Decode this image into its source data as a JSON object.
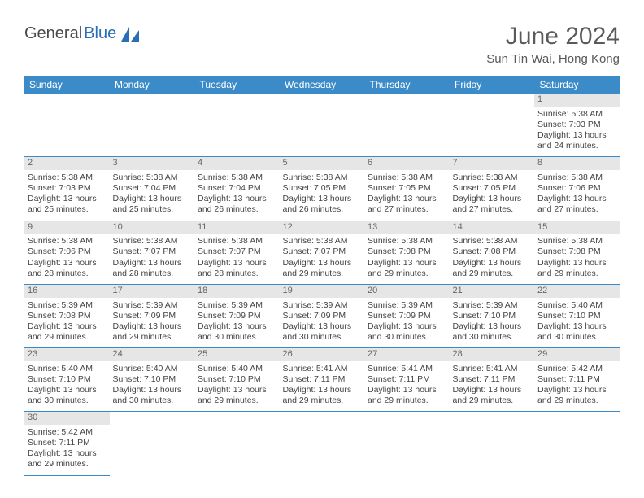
{
  "brand": {
    "part1": "General",
    "part2": "Blue"
  },
  "title": "June 2024",
  "location": "Sun Tin Wai, Hong Kong",
  "colors": {
    "header_bg": "#3b8bc9",
    "header_text": "#ffffff",
    "daynum_bg": "#e6e6e6",
    "text": "#444444",
    "border": "#3b8bc9"
  },
  "day_headers": [
    "Sunday",
    "Monday",
    "Tuesday",
    "Wednesday",
    "Thursday",
    "Friday",
    "Saturday"
  ],
  "weeks": [
    [
      null,
      null,
      null,
      null,
      null,
      null,
      {
        "n": "1",
        "sr": "Sunrise: 5:38 AM",
        "ss": "Sunset: 7:03 PM",
        "dl": "Daylight: 13 hours and 24 minutes."
      }
    ],
    [
      {
        "n": "2",
        "sr": "Sunrise: 5:38 AM",
        "ss": "Sunset: 7:03 PM",
        "dl": "Daylight: 13 hours and 25 minutes."
      },
      {
        "n": "3",
        "sr": "Sunrise: 5:38 AM",
        "ss": "Sunset: 7:04 PM",
        "dl": "Daylight: 13 hours and 25 minutes."
      },
      {
        "n": "4",
        "sr": "Sunrise: 5:38 AM",
        "ss": "Sunset: 7:04 PM",
        "dl": "Daylight: 13 hours and 26 minutes."
      },
      {
        "n": "5",
        "sr": "Sunrise: 5:38 AM",
        "ss": "Sunset: 7:05 PM",
        "dl": "Daylight: 13 hours and 26 minutes."
      },
      {
        "n": "6",
        "sr": "Sunrise: 5:38 AM",
        "ss": "Sunset: 7:05 PM",
        "dl": "Daylight: 13 hours and 27 minutes."
      },
      {
        "n": "7",
        "sr": "Sunrise: 5:38 AM",
        "ss": "Sunset: 7:05 PM",
        "dl": "Daylight: 13 hours and 27 minutes."
      },
      {
        "n": "8",
        "sr": "Sunrise: 5:38 AM",
        "ss": "Sunset: 7:06 PM",
        "dl": "Daylight: 13 hours and 27 minutes."
      }
    ],
    [
      {
        "n": "9",
        "sr": "Sunrise: 5:38 AM",
        "ss": "Sunset: 7:06 PM",
        "dl": "Daylight: 13 hours and 28 minutes."
      },
      {
        "n": "10",
        "sr": "Sunrise: 5:38 AM",
        "ss": "Sunset: 7:07 PM",
        "dl": "Daylight: 13 hours and 28 minutes."
      },
      {
        "n": "11",
        "sr": "Sunrise: 5:38 AM",
        "ss": "Sunset: 7:07 PM",
        "dl": "Daylight: 13 hours and 28 minutes."
      },
      {
        "n": "12",
        "sr": "Sunrise: 5:38 AM",
        "ss": "Sunset: 7:07 PM",
        "dl": "Daylight: 13 hours and 29 minutes."
      },
      {
        "n": "13",
        "sr": "Sunrise: 5:38 AM",
        "ss": "Sunset: 7:08 PM",
        "dl": "Daylight: 13 hours and 29 minutes."
      },
      {
        "n": "14",
        "sr": "Sunrise: 5:38 AM",
        "ss": "Sunset: 7:08 PM",
        "dl": "Daylight: 13 hours and 29 minutes."
      },
      {
        "n": "15",
        "sr": "Sunrise: 5:38 AM",
        "ss": "Sunset: 7:08 PM",
        "dl": "Daylight: 13 hours and 29 minutes."
      }
    ],
    [
      {
        "n": "16",
        "sr": "Sunrise: 5:39 AM",
        "ss": "Sunset: 7:08 PM",
        "dl": "Daylight: 13 hours and 29 minutes."
      },
      {
        "n": "17",
        "sr": "Sunrise: 5:39 AM",
        "ss": "Sunset: 7:09 PM",
        "dl": "Daylight: 13 hours and 29 minutes."
      },
      {
        "n": "18",
        "sr": "Sunrise: 5:39 AM",
        "ss": "Sunset: 7:09 PM",
        "dl": "Daylight: 13 hours and 30 minutes."
      },
      {
        "n": "19",
        "sr": "Sunrise: 5:39 AM",
        "ss": "Sunset: 7:09 PM",
        "dl": "Daylight: 13 hours and 30 minutes."
      },
      {
        "n": "20",
        "sr": "Sunrise: 5:39 AM",
        "ss": "Sunset: 7:09 PM",
        "dl": "Daylight: 13 hours and 30 minutes."
      },
      {
        "n": "21",
        "sr": "Sunrise: 5:39 AM",
        "ss": "Sunset: 7:10 PM",
        "dl": "Daylight: 13 hours and 30 minutes."
      },
      {
        "n": "22",
        "sr": "Sunrise: 5:40 AM",
        "ss": "Sunset: 7:10 PM",
        "dl": "Daylight: 13 hours and 30 minutes."
      }
    ],
    [
      {
        "n": "23",
        "sr": "Sunrise: 5:40 AM",
        "ss": "Sunset: 7:10 PM",
        "dl": "Daylight: 13 hours and 30 minutes."
      },
      {
        "n": "24",
        "sr": "Sunrise: 5:40 AM",
        "ss": "Sunset: 7:10 PM",
        "dl": "Daylight: 13 hours and 30 minutes."
      },
      {
        "n": "25",
        "sr": "Sunrise: 5:40 AM",
        "ss": "Sunset: 7:10 PM",
        "dl": "Daylight: 13 hours and 29 minutes."
      },
      {
        "n": "26",
        "sr": "Sunrise: 5:41 AM",
        "ss": "Sunset: 7:11 PM",
        "dl": "Daylight: 13 hours and 29 minutes."
      },
      {
        "n": "27",
        "sr": "Sunrise: 5:41 AM",
        "ss": "Sunset: 7:11 PM",
        "dl": "Daylight: 13 hours and 29 minutes."
      },
      {
        "n": "28",
        "sr": "Sunrise: 5:41 AM",
        "ss": "Sunset: 7:11 PM",
        "dl": "Daylight: 13 hours and 29 minutes."
      },
      {
        "n": "29",
        "sr": "Sunrise: 5:42 AM",
        "ss": "Sunset: 7:11 PM",
        "dl": "Daylight: 13 hours and 29 minutes."
      }
    ],
    [
      {
        "n": "30",
        "sr": "Sunrise: 5:42 AM",
        "ss": "Sunset: 7:11 PM",
        "dl": "Daylight: 13 hours and 29 minutes."
      },
      null,
      null,
      null,
      null,
      null,
      null
    ]
  ]
}
